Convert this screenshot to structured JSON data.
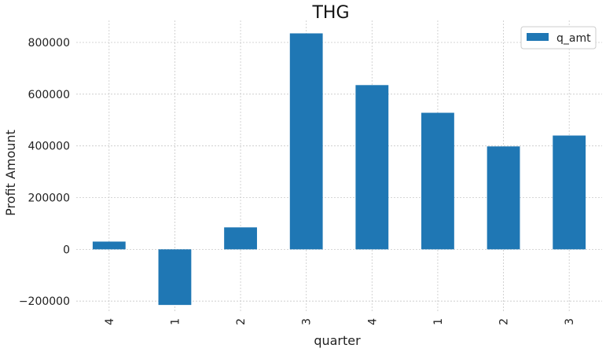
{
  "chart_data": {
    "type": "bar",
    "title": "THG",
    "xlabel": "quarter",
    "ylabel": "Profit Amount",
    "categories": [
      "4",
      "1",
      "2",
      "3",
      "4",
      "1",
      "2",
      "3"
    ],
    "series": [
      {
        "name": "q_amt",
        "values": [
          30000,
          -215000,
          85000,
          835000,
          635000,
          528000,
          398000,
          440000
        ],
        "color": "#1f77b4"
      }
    ],
    "ylim": [
      -245000,
      885000
    ],
    "yticks": [
      -200000,
      0,
      200000,
      400000,
      600000,
      800000
    ],
    "ytick_labels": [
      "−200000",
      "0",
      "200000",
      "400000",
      "600000",
      "800000"
    ],
    "grid": true,
    "legend_position": "top-right"
  }
}
